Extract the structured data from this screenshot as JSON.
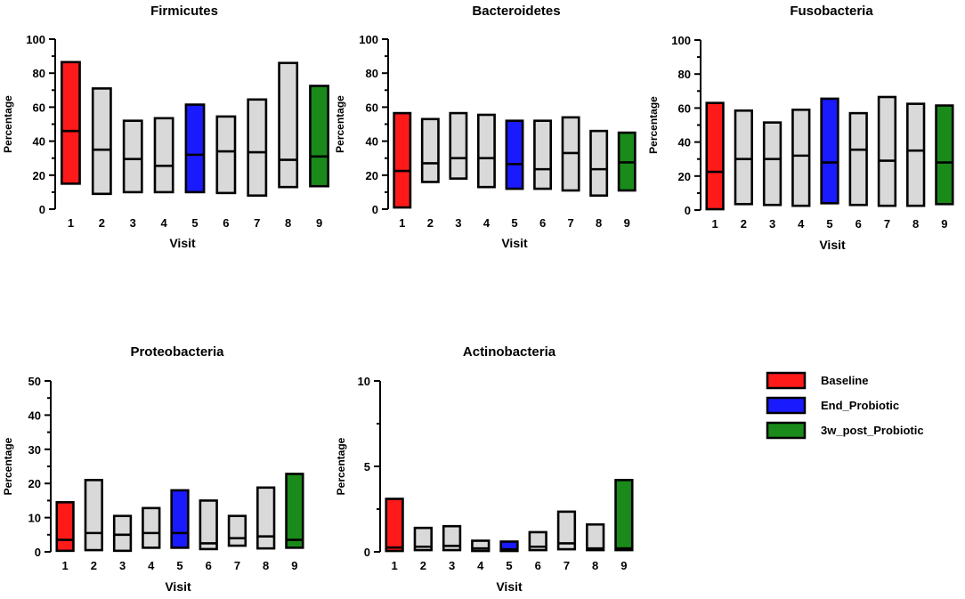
{
  "legend": {
    "items": [
      {
        "label": "Baseline",
        "color": "#ff1a1a"
      },
      {
        "label": "End_Probiotic",
        "color": "#1a1aff"
      },
      {
        "label": "3w_post_Probiotic",
        "color": "#1a8a1a"
      }
    ]
  },
  "colors": {
    "other": "#d9d9d9",
    "stroke": "#000000"
  },
  "chart_data": [
    {
      "type": "bar",
      "title": "Firmicutes",
      "xlabel": "Visit",
      "ylabel": "Percentage",
      "ylim": [
        0,
        100
      ],
      "yticks": [
        0,
        20,
        40,
        60,
        80,
        100
      ],
      "categories": [
        "1",
        "2",
        "3",
        "4",
        "5",
        "6",
        "7",
        "8",
        "9"
      ],
      "low": [
        15,
        9,
        10,
        10,
        10,
        9.5,
        8,
        13,
        13.5
      ],
      "median": [
        46,
        35,
        29.5,
        25.5,
        32,
        34,
        33.5,
        29,
        31
      ],
      "high": [
        86.5,
        71,
        52,
        53.5,
        61.5,
        54.5,
        64.5,
        86,
        72.5
      ]
    },
    {
      "type": "bar",
      "title": "Bacteroidetes",
      "xlabel": "Visit",
      "ylabel": "Percentage",
      "ylim": [
        0,
        100
      ],
      "yticks": [
        0,
        20,
        40,
        60,
        80,
        100
      ],
      "categories": [
        "1",
        "2",
        "3",
        "4",
        "5",
        "6",
        "7",
        "8",
        "9"
      ],
      "low": [
        1,
        16,
        18,
        13,
        12,
        12,
        11,
        8,
        11
      ],
      "median": [
        22.5,
        27,
        30,
        30,
        26.5,
        23.5,
        33,
        23.5,
        27.5
      ],
      "high": [
        56.5,
        53,
        56.5,
        55.5,
        52,
        52,
        54,
        46,
        45
      ]
    },
    {
      "type": "bar",
      "title": "Fusobacteria",
      "xlabel": "Visit",
      "ylabel": "Percentage",
      "ylim": [
        0,
        100
      ],
      "yticks": [
        0,
        20,
        40,
        60,
        80,
        100
      ],
      "categories": [
        "1",
        "2",
        "3",
        "4",
        "5",
        "6",
        "7",
        "8",
        "9"
      ],
      "low": [
        0.5,
        3.5,
        3,
        2.5,
        4,
        3,
        2.5,
        2.5,
        3.5
      ],
      "median": [
        22.5,
        30,
        30,
        32,
        28,
        35.5,
        29,
        35,
        28
      ],
      "high": [
        63,
        58.5,
        51.5,
        59,
        65.5,
        57,
        66.5,
        62.5,
        61.5
      ]
    },
    {
      "type": "bar",
      "title": "Proteobacteria",
      "xlabel": "Visit",
      "ylabel": "Percentage",
      "ylim": [
        0,
        50
      ],
      "yticks": [
        0,
        10,
        20,
        30,
        40,
        50
      ],
      "categories": [
        "1",
        "2",
        "3",
        "4",
        "5",
        "6",
        "7",
        "8",
        "9"
      ],
      "low": [
        0.3,
        0.5,
        0.3,
        1.2,
        1.2,
        0.8,
        1.8,
        1,
        1.2
      ],
      "median": [
        3.5,
        5.5,
        5,
        5.5,
        5.5,
        2.5,
        4,
        4.5,
        3.5
      ],
      "high": [
        14.5,
        21,
        10.5,
        12.8,
        18,
        15,
        10.5,
        18.8,
        22.8
      ]
    },
    {
      "type": "bar",
      "title": "Actinobacteria",
      "xlabel": "Visit",
      "ylabel": "Percentage",
      "ylim": [
        0,
        10
      ],
      "yticks": [
        0,
        5,
        10
      ],
      "categories": [
        "1",
        "2",
        "3",
        "4",
        "5",
        "6",
        "7",
        "8",
        "9"
      ],
      "low": [
        0.05,
        0.1,
        0.1,
        0.05,
        0.05,
        0.1,
        0.15,
        0.1,
        0.1
      ],
      "median": [
        0.25,
        0.3,
        0.35,
        0.2,
        0.15,
        0.3,
        0.5,
        0.2,
        0.2
      ],
      "high": [
        3.1,
        1.4,
        1.5,
        0.65,
        0.6,
        1.15,
        2.35,
        1.6,
        4.2
      ]
    }
  ]
}
